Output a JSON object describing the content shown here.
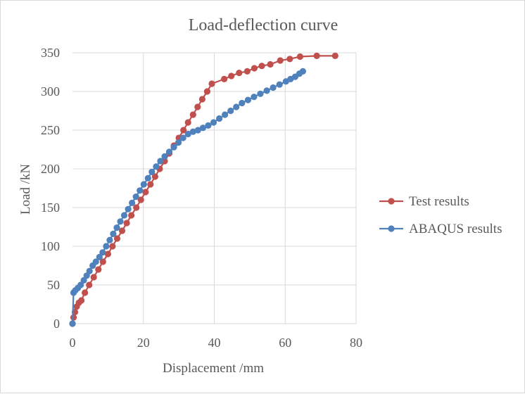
{
  "chart_data": {
    "type": "line",
    "title": "Load-deflection  curve",
    "xlabel": "Displacement /mm",
    "ylabel": "Load /kN",
    "xlim": [
      0,
      80
    ],
    "ylim": [
      0,
      350
    ],
    "xticks": [
      "0",
      "20",
      "40",
      "60",
      "80"
    ],
    "yticks": [
      "0",
      "50",
      "100",
      "150",
      "200",
      "250",
      "300",
      "350"
    ],
    "grid": true,
    "legend_position": "right",
    "series": [
      {
        "name": "Test results",
        "color": "#c0504d",
        "x": [
          0,
          0.3,
          0.7,
          1.2,
          1.8,
          2.5,
          3.5,
          4.7,
          6.0,
          7.3,
          8.6,
          10.0,
          11.3,
          12.6,
          14.0,
          15.3,
          16.6,
          18.0,
          19.3,
          20.6,
          22.0,
          23.3,
          24.6,
          26.0,
          27.3,
          28.6,
          30.0,
          31.3,
          32.6,
          34.0,
          35.3,
          36.6,
          38.0,
          39.3,
          42.8,
          44.8,
          47.0,
          49.3,
          51.3,
          53.4,
          55.8,
          58.6,
          61.3,
          64.2,
          68.9,
          74.1
        ],
        "y": [
          0,
          8,
          15,
          22,
          27,
          30,
          40,
          50,
          60,
          70,
          80,
          90,
          100,
          110,
          120,
          130,
          140,
          150,
          160,
          170,
          180,
          190,
          200,
          210,
          220,
          230,
          240,
          250,
          260,
          270,
          280,
          290,
          300,
          310,
          316,
          320,
          324,
          326,
          330,
          333,
          335,
          340,
          342,
          345,
          346,
          346
        ]
      },
      {
        "name": "ABAQUS results",
        "color": "#4f81bd",
        "x": [
          0,
          0.3,
          0.8,
          1.5,
          2.3,
          3.2,
          4.0,
          4.8,
          5.7,
          6.6,
          7.6,
          8.5,
          9.5,
          10.5,
          11.5,
          12.5,
          13.5,
          14.6,
          15.7,
          16.8,
          17.9,
          19.0,
          20.1,
          21.3,
          22.4,
          23.6,
          24.8,
          26.0,
          27.3,
          28.6,
          29.9,
          31.2,
          32.6,
          34.0,
          35.4,
          36.8,
          38.3,
          39.8,
          41.4,
          43.0,
          44.6,
          46.2,
          47.8,
          49.5,
          51.2,
          53.0,
          54.8,
          56.6,
          58.4,
          60.2,
          61.5,
          62.8,
          64.0,
          65.0
        ],
        "y": [
          0,
          40,
          43,
          46,
          50,
          56,
          62,
          68,
          75,
          80,
          86,
          92,
          100,
          108,
          116,
          124,
          132,
          140,
          148,
          156,
          164,
          172,
          180,
          188,
          196,
          203,
          210,
          216,
          222,
          228,
          234,
          240,
          245,
          248,
          250,
          253,
          256,
          260,
          265,
          270,
          275,
          280,
          285,
          289,
          293,
          297,
          301,
          305,
          309,
          313,
          316,
          319,
          323,
          326
        ]
      }
    ]
  }
}
